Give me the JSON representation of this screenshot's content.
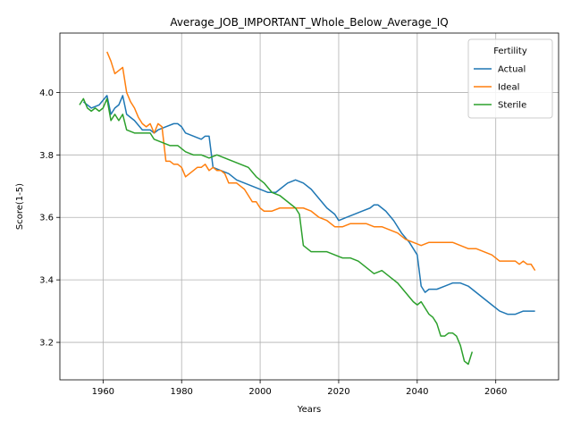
{
  "chart_data": {
    "type": "line",
    "title": "Average_JOB_IMPORTANT_Whole_Below_Average_IQ",
    "xlabel": "Years",
    "ylabel": "Score(1-5)",
    "xlim": [
      1949,
      2076
    ],
    "ylim": [
      3.08,
      4.19
    ],
    "xticks": [
      "1960",
      "1980",
      "2000",
      "2020",
      "2040",
      "2060"
    ],
    "yticks": [
      "3.2",
      "3.4",
      "3.6",
      "3.8",
      "4.0"
    ],
    "grid": true,
    "legend": {
      "title": "Fertility",
      "placement": "top-right"
    },
    "series": [
      {
        "name": "Actual",
        "color": "#1f77b4",
        "points": [
          [
            1955,
            3.97
          ],
          [
            1957,
            3.95
          ],
          [
            1959,
            3.96
          ],
          [
            1961,
            3.99
          ],
          [
            1962,
            3.93
          ],
          [
            1963,
            3.95
          ],
          [
            1964,
            3.96
          ],
          [
            1965,
            3.99
          ],
          [
            1966,
            3.93
          ],
          [
            1968,
            3.91
          ],
          [
            1970,
            3.88
          ],
          [
            1972,
            3.88
          ],
          [
            1973,
            3.87
          ],
          [
            1974,
            3.88
          ],
          [
            1976,
            3.89
          ],
          [
            1978,
            3.9
          ],
          [
            1979,
            3.9
          ],
          [
            1980,
            3.89
          ],
          [
            1981,
            3.87
          ],
          [
            1983,
            3.86
          ],
          [
            1985,
            3.85
          ],
          [
            1986,
            3.86
          ],
          [
            1987,
            3.86
          ],
          [
            1988,
            3.76
          ],
          [
            1990,
            3.75
          ],
          [
            1992,
            3.74
          ],
          [
            1994,
            3.72
          ],
          [
            1996,
            3.71
          ],
          [
            1998,
            3.7
          ],
          [
            2000,
            3.69
          ],
          [
            2002,
            3.68
          ],
          [
            2004,
            3.68
          ],
          [
            2005,
            3.69
          ],
          [
            2007,
            3.71
          ],
          [
            2009,
            3.72
          ],
          [
            2011,
            3.71
          ],
          [
            2013,
            3.69
          ],
          [
            2015,
            3.66
          ],
          [
            2017,
            3.63
          ],
          [
            2019,
            3.61
          ],
          [
            2020,
            3.59
          ],
          [
            2022,
            3.6
          ],
          [
            2024,
            3.61
          ],
          [
            2026,
            3.62
          ],
          [
            2028,
            3.63
          ],
          [
            2029,
            3.64
          ],
          [
            2030,
            3.64
          ],
          [
            2032,
            3.62
          ],
          [
            2034,
            3.59
          ],
          [
            2036,
            3.55
          ],
          [
            2038,
            3.52
          ],
          [
            2040,
            3.48
          ],
          [
            2041,
            3.38
          ],
          [
            2042,
            3.36
          ],
          [
            2043,
            3.37
          ],
          [
            2045,
            3.37
          ],
          [
            2047,
            3.38
          ],
          [
            2049,
            3.39
          ],
          [
            2051,
            3.39
          ],
          [
            2053,
            3.38
          ],
          [
            2055,
            3.36
          ],
          [
            2057,
            3.34
          ],
          [
            2059,
            3.32
          ],
          [
            2061,
            3.3
          ],
          [
            2063,
            3.29
          ],
          [
            2065,
            3.29
          ],
          [
            2067,
            3.3
          ],
          [
            2069,
            3.3
          ],
          [
            2070,
            3.3
          ]
        ]
      },
      {
        "name": "Ideal",
        "color": "#ff7f0e",
        "points": [
          [
            1961,
            4.13
          ],
          [
            1962,
            4.1
          ],
          [
            1963,
            4.06
          ],
          [
            1964,
            4.07
          ],
          [
            1965,
            4.08
          ],
          [
            1966,
            4.0
          ],
          [
            1967,
            3.97
          ],
          [
            1968,
            3.95
          ],
          [
            1969,
            3.92
          ],
          [
            1970,
            3.9
          ],
          [
            1971,
            3.89
          ],
          [
            1972,
            3.9
          ],
          [
            1973,
            3.87
          ],
          [
            1974,
            3.9
          ],
          [
            1975,
            3.89
          ],
          [
            1976,
            3.78
          ],
          [
            1977,
            3.78
          ],
          [
            1978,
            3.77
          ],
          [
            1979,
            3.77
          ],
          [
            1980,
            3.76
          ],
          [
            1981,
            3.73
          ],
          [
            1982,
            3.74
          ],
          [
            1983,
            3.75
          ],
          [
            1984,
            3.76
          ],
          [
            1985,
            3.76
          ],
          [
            1986,
            3.77
          ],
          [
            1987,
            3.75
          ],
          [
            1988,
            3.76
          ],
          [
            1989,
            3.75
          ],
          [
            1990,
            3.75
          ],
          [
            1991,
            3.74
          ],
          [
            1992,
            3.71
          ],
          [
            1993,
            3.71
          ],
          [
            1994,
            3.71
          ],
          [
            1995,
            3.7
          ],
          [
            1996,
            3.69
          ],
          [
            1997,
            3.67
          ],
          [
            1998,
            3.65
          ],
          [
            1999,
            3.65
          ],
          [
            2000,
            3.63
          ],
          [
            2001,
            3.62
          ],
          [
            2003,
            3.62
          ],
          [
            2005,
            3.63
          ],
          [
            2007,
            3.63
          ],
          [
            2009,
            3.63
          ],
          [
            2011,
            3.63
          ],
          [
            2013,
            3.62
          ],
          [
            2015,
            3.6
          ],
          [
            2017,
            3.59
          ],
          [
            2019,
            3.57
          ],
          [
            2021,
            3.57
          ],
          [
            2023,
            3.58
          ],
          [
            2025,
            3.58
          ],
          [
            2027,
            3.58
          ],
          [
            2029,
            3.57
          ],
          [
            2031,
            3.57
          ],
          [
            2033,
            3.56
          ],
          [
            2035,
            3.55
          ],
          [
            2037,
            3.53
          ],
          [
            2039,
            3.52
          ],
          [
            2041,
            3.51
          ],
          [
            2043,
            3.52
          ],
          [
            2045,
            3.52
          ],
          [
            2047,
            3.52
          ],
          [
            2049,
            3.52
          ],
          [
            2051,
            3.51
          ],
          [
            2053,
            3.5
          ],
          [
            2055,
            3.5
          ],
          [
            2057,
            3.49
          ],
          [
            2059,
            3.48
          ],
          [
            2061,
            3.46
          ],
          [
            2063,
            3.46
          ],
          [
            2065,
            3.46
          ],
          [
            2066,
            3.45
          ],
          [
            2067,
            3.46
          ],
          [
            2068,
            3.45
          ],
          [
            2069,
            3.45
          ],
          [
            2070,
            3.43
          ]
        ]
      },
      {
        "name": "Sterile",
        "color": "#2ca02c",
        "points": [
          [
            1954,
            3.96
          ],
          [
            1955,
            3.98
          ],
          [
            1956,
            3.95
          ],
          [
            1957,
            3.94
          ],
          [
            1958,
            3.95
          ],
          [
            1959,
            3.94
          ],
          [
            1960,
            3.95
          ],
          [
            1961,
            3.98
          ],
          [
            1962,
            3.91
          ],
          [
            1963,
            3.93
          ],
          [
            1964,
            3.91
          ],
          [
            1965,
            3.93
          ],
          [
            1966,
            3.88
          ],
          [
            1968,
            3.87
          ],
          [
            1970,
            3.87
          ],
          [
            1972,
            3.87
          ],
          [
            1973,
            3.85
          ],
          [
            1975,
            3.84
          ],
          [
            1977,
            3.83
          ],
          [
            1979,
            3.83
          ],
          [
            1981,
            3.81
          ],
          [
            1983,
            3.8
          ],
          [
            1985,
            3.8
          ],
          [
            1987,
            3.79
          ],
          [
            1989,
            3.8
          ],
          [
            1991,
            3.79
          ],
          [
            1993,
            3.78
          ],
          [
            1995,
            3.77
          ],
          [
            1997,
            3.76
          ],
          [
            1999,
            3.73
          ],
          [
            2001,
            3.71
          ],
          [
            2003,
            3.68
          ],
          [
            2005,
            3.67
          ],
          [
            2007,
            3.65
          ],
          [
            2009,
            3.63
          ],
          [
            2010,
            3.61
          ],
          [
            2011,
            3.51
          ],
          [
            2013,
            3.49
          ],
          [
            2015,
            3.49
          ],
          [
            2017,
            3.49
          ],
          [
            2019,
            3.48
          ],
          [
            2021,
            3.47
          ],
          [
            2023,
            3.47
          ],
          [
            2025,
            3.46
          ],
          [
            2027,
            3.44
          ],
          [
            2029,
            3.42
          ],
          [
            2031,
            3.43
          ],
          [
            2033,
            3.41
          ],
          [
            2035,
            3.39
          ],
          [
            2037,
            3.36
          ],
          [
            2039,
            3.33
          ],
          [
            2040,
            3.32
          ],
          [
            2041,
            3.33
          ],
          [
            2042,
            3.31
          ],
          [
            2043,
            3.29
          ],
          [
            2044,
            3.28
          ],
          [
            2045,
            3.26
          ],
          [
            2046,
            3.22
          ],
          [
            2047,
            3.22
          ],
          [
            2048,
            3.23
          ],
          [
            2049,
            3.23
          ],
          [
            2050,
            3.22
          ],
          [
            2051,
            3.19
          ],
          [
            2052,
            3.14
          ],
          [
            2053,
            3.13
          ],
          [
            2054,
            3.17
          ]
        ]
      }
    ]
  }
}
